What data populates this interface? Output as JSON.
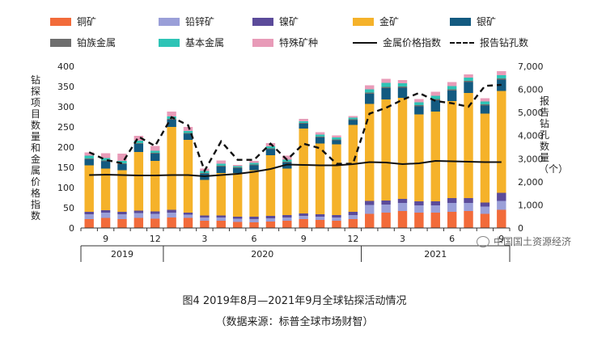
{
  "chart_data": {
    "type": "bar",
    "stacked": true,
    "x": [
      "2019-08",
      "2019-09",
      "2019-10",
      "2019-11",
      "2019-12",
      "2020-01",
      "2020-02",
      "2020-03",
      "2020-04",
      "2020-05",
      "2020-06",
      "2020-07",
      "2020-08",
      "2020-09",
      "2020-10",
      "2020-11",
      "2020-12",
      "2021-01",
      "2021-02",
      "2021-03",
      "2021-04",
      "2021-05",
      "2021-06",
      "2021-07",
      "2021-08",
      "2021-09"
    ],
    "x_tick_labels": [
      {
        "index": 1,
        "text": "9"
      },
      {
        "index": 4,
        "text": "12"
      },
      {
        "index": 7,
        "text": "3"
      },
      {
        "index": 10,
        "text": "6"
      },
      {
        "index": 13,
        "text": "9"
      },
      {
        "index": 16,
        "text": "12"
      },
      {
        "index": 19,
        "text": "3"
      },
      {
        "index": 22,
        "text": "6"
      },
      {
        "index": 25,
        "text": "9"
      }
    ],
    "year_groups": [
      {
        "label": "2019",
        "start": 0,
        "end": 4
      },
      {
        "label": "2020",
        "start": 5,
        "end": 16
      },
      {
        "label": "2021",
        "start": 17,
        "end": 25
      }
    ],
    "left_axis": {
      "label": "钻探项目数量和金属价格指数",
      "min": 0,
      "max": 400,
      "ticks": [
        0,
        50,
        100,
        150,
        200,
        250,
        300,
        350,
        400
      ]
    },
    "right_axis": {
      "label": "报告钻孔数量（个）",
      "min": 0,
      "max": 7000,
      "ticks": [
        0,
        1000,
        2000,
        3000,
        4000,
        5000,
        6000,
        7000
      ],
      "tick_labels": [
        "0",
        "1,000",
        "2,000",
        "3,000",
        "4,000",
        "5,000",
        "6,000",
        "7,000"
      ]
    },
    "series": [
      {
        "name": "铜矿",
        "kind": "bar",
        "color": "#F26B3A",
        "values": [
          22,
          25,
          22,
          25,
          23,
          26,
          25,
          18,
          18,
          15,
          14,
          16,
          18,
          22,
          20,
          18,
          22,
          35,
          38,
          42,
          38,
          38,
          40,
          42,
          35,
          45
        ]
      },
      {
        "name": "铅锌矿",
        "kind": "bar",
        "color": "#9A9FD8",
        "values": [
          12,
          13,
          12,
          12,
          12,
          12,
          8,
          8,
          8,
          8,
          8,
          8,
          8,
          8,
          8,
          8,
          10,
          22,
          20,
          20,
          18,
          18,
          22,
          20,
          18,
          22
        ]
      },
      {
        "name": "镍矿",
        "kind": "bar",
        "color": "#5B4B9A",
        "values": [
          6,
          6,
          6,
          6,
          6,
          7,
          5,
          5,
          5,
          5,
          6,
          6,
          6,
          6,
          6,
          6,
          8,
          10,
          10,
          10,
          10,
          10,
          12,
          12,
          10,
          20
        ]
      },
      {
        "name": "金矿",
        "kind": "bar",
        "color": "#F5B22A",
        "values": [
          115,
          103,
          103,
          145,
          125,
          205,
          180,
          88,
          105,
          108,
          115,
          150,
          115,
          210,
          175,
          175,
          215,
          240,
          250,
          250,
          215,
          222,
          240,
          260,
          220,
          252
        ]
      },
      {
        "name": "银矿",
        "kind": "bar",
        "color": "#135A80",
        "values": [
          15,
          18,
          15,
          20,
          18,
          18,
          15,
          15,
          16,
          12,
          12,
          15,
          15,
          12,
          15,
          10,
          12,
          25,
          28,
          25,
          20,
          28,
          26,
          27,
          20,
          28
        ]
      },
      {
        "name": "铂族金属",
        "kind": "bar",
        "color": "#6E6E6E",
        "values": [
          2,
          2,
          2,
          2,
          2,
          2,
          2,
          2,
          2,
          2,
          2,
          2,
          2,
          2,
          2,
          2,
          2,
          3,
          3,
          3,
          3,
          3,
          3,
          3,
          3,
          3
        ]
      },
      {
        "name": "基本金属",
        "kind": "bar",
        "color": "#2EC4B6",
        "values": [
          7,
          6,
          6,
          6,
          5,
          6,
          5,
          5,
          5,
          3,
          4,
          5,
          5,
          4,
          5,
          5,
          4,
          8,
          10,
          8,
          7,
          8,
          8,
          8,
          7,
          8
        ]
      },
      {
        "name": "特殊矿种",
        "kind": "bar",
        "color": "#E89BB8",
        "values": [
          8,
          12,
          18,
          12,
          12,
          12,
          10,
          6,
          8,
          3,
          5,
          8,
          10,
          6,
          6,
          5,
          4,
          10,
          10,
          8,
          8,
          10,
          10,
          8,
          8,
          10
        ]
      },
      {
        "name": "金属价格指数",
        "kind": "line",
        "axis": "left",
        "style": "solid",
        "color": "#111111",
        "values": [
          131,
          132,
          131,
          130,
          130,
          131,
          131,
          128,
          131,
          134,
          139,
          146,
          157,
          156,
          155,
          155,
          158,
          163,
          162,
          158,
          160,
          166,
          165,
          164,
          163,
          163
        ]
      },
      {
        "name": "报告钻孔数",
        "kind": "line",
        "axis": "right",
        "style": "dashed",
        "color": "#111111",
        "values": [
          3280,
          2950,
          2800,
          3950,
          3550,
          4800,
          4450,
          2480,
          3750,
          2950,
          2950,
          3650,
          2950,
          3650,
          3450,
          2780,
          2780,
          4950,
          5200,
          5550,
          5850,
          5500,
          5400,
          5250,
          6150,
          6200
        ]
      }
    ],
    "legend_placement": "top",
    "grid": false
  },
  "watermark": "中国国土资源经济",
  "caption": {
    "title": "图4  2019年8月—2021年9月全球钻探活动情况",
    "source": "（数据来源：标普全球市场财智）"
  }
}
